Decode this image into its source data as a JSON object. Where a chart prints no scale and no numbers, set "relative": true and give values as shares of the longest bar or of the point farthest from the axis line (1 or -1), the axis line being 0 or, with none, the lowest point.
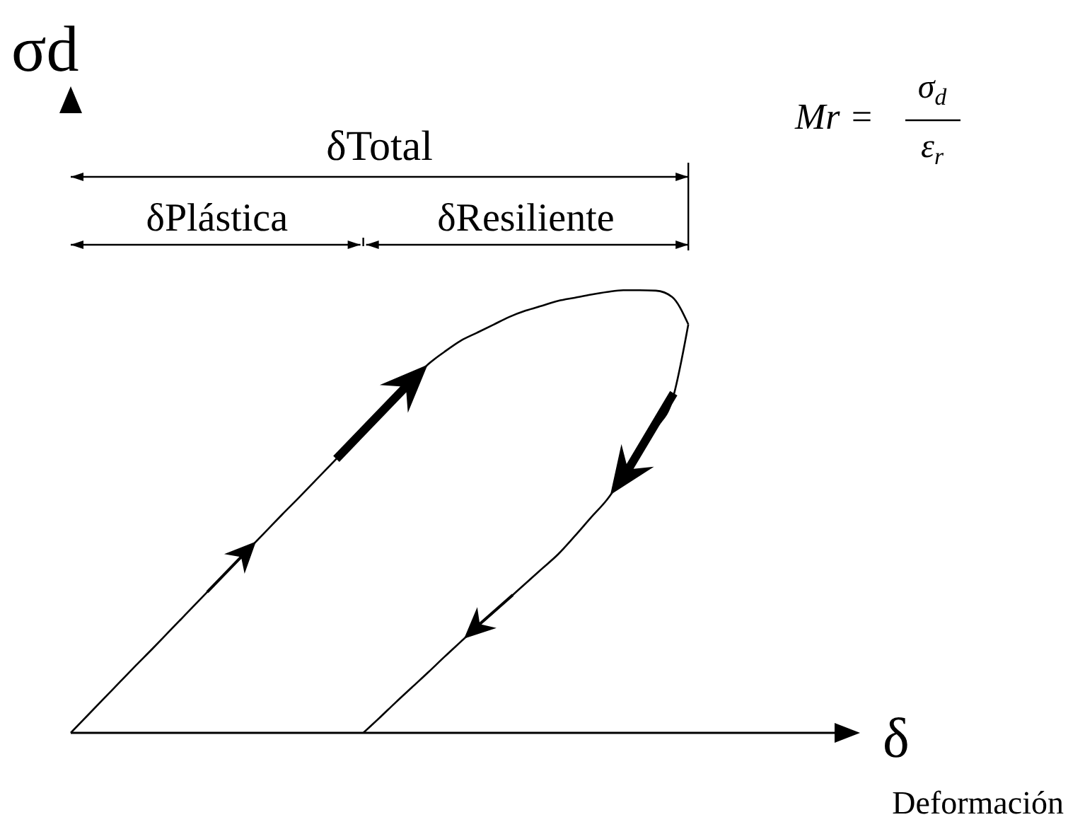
{
  "chart_data": {
    "type": "line",
    "relative": true,
    "ylabel": "σd",
    "xlabel": "δ",
    "annotations": [
      "δTotal",
      "δPlástica",
      "δResiliente",
      "Mr =",
      "σ$_{d}$",
      "ε$_{r}$",
      "Deformación"
    ],
    "categories": [
      null,
      null,
      null,
      null,
      null,
      null,
      null,
      null,
      null,
      null,
      null,
      null,
      null,
      null,
      null,
      null,
      null,
      null,
      null,
      null,
      null,
      null,
      null,
      null,
      null,
      null,
      null,
      null,
      null,
      null,
      null,
      null,
      null,
      null,
      null,
      null,
      null,
      null,
      null,
      null,
      null,
      null,
      null,
      null,
      null,
      null,
      null,
      null
    ],
    "series": [
      {
        "color": "#000000",
        "values": [
          0,
          0.038,
          0.076,
          0.114,
          0.152,
          0.189,
          0.227,
          0.265,
          0.303,
          0.341,
          0.379,
          0.417,
          0.455,
          0.493,
          0.53,
          0.568,
          0.606,
          0.644,
          0.682,
          0.72,
          0.758,
          0.796,
          0.833,
          0.861,
          0.886,
          0.904,
          0.922,
          0.94,
          0.954,
          0.965,
          0.976,
          0.983,
          0.99,
          0.996,
          1,
          1,
          0.999,
          0.985,
          0.923,
          null,
          null,
          null,
          null,
          null,
          null,
          null,
          null,
          null
        ]
      },
      {
        "color": "#000000",
        "values": [
          null,
          null,
          null,
          null,
          null,
          null,
          null,
          null,
          null,
          null,
          null,
          null,
          null,
          null,
          null,
          null,
          null,
          null,
          0,
          0.034,
          0.069,
          0.103,
          0.137,
          0.172,
          0.206,
          0.24,
          0.272,
          0.305,
          0.338,
          0.371,
          0.404,
          0.444,
          0.486,
          0.527,
          0.58,
          0.635,
          0.688,
          0.75,
          0.923,
          null,
          null,
          null,
          null,
          null,
          null,
          null,
          null,
          null
        ]
      }
    ],
    "marker": "none",
    "line_style": "solid"
  }
}
